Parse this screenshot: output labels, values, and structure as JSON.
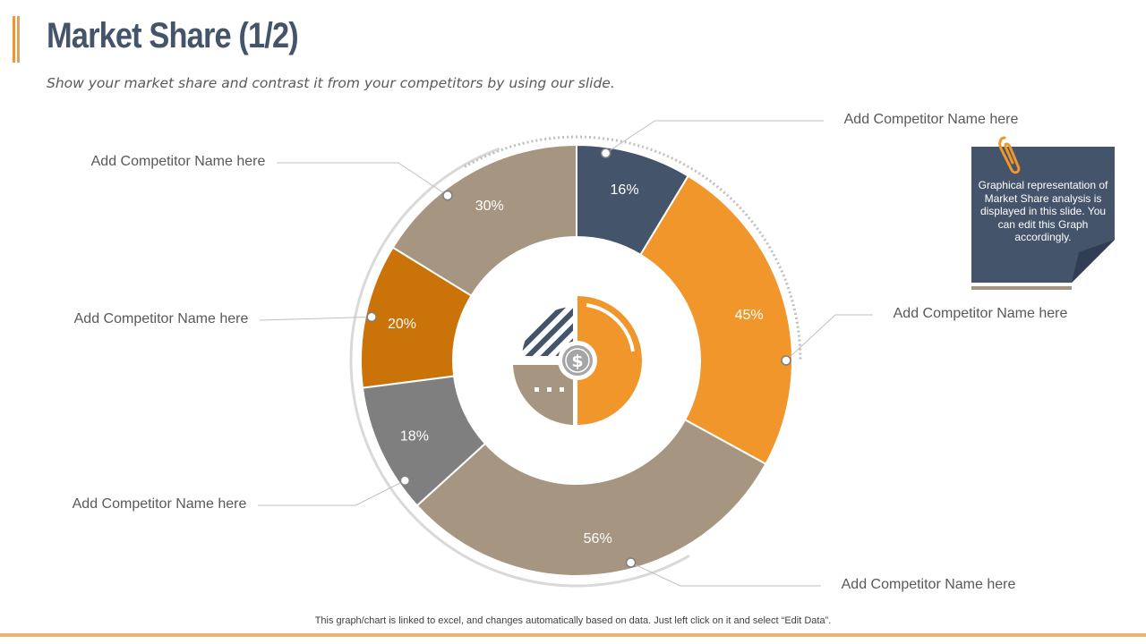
{
  "title": "Market Share (1/2)",
  "subtitle": "Show your market share and contrast it from your competitors by using our slide.",
  "colors": {
    "accent": "#f0962a",
    "title": "#44546a",
    "tan": "#a69580",
    "dark_orange": "#c97308",
    "gray": "#7f7f7f",
    "slate": "#44546a"
  },
  "chart_data": {
    "type": "donut",
    "title": "",
    "slices": [
      {
        "label": "Add Competitor Name here",
        "value": 16,
        "display": "16%",
        "color": "#44546a"
      },
      {
        "label": "Add Competitor Name here",
        "value": 45,
        "display": "45%",
        "color": "#f0962a"
      },
      {
        "label": "Add Competitor Name here",
        "value": 56,
        "display": "56%",
        "color": "#a69580"
      },
      {
        "label": "Add Competitor Name here",
        "value": 18,
        "display": "18%",
        "color": "#7f7f7f"
      },
      {
        "label": "Add Competitor Name here",
        "value": 20,
        "display": "20%",
        "color": "#c97308"
      },
      {
        "label": "Add Competitor Name here",
        "value": 30,
        "display": "30%",
        "color": "#a69580"
      }
    ],
    "center_icon": "dollar-pie-icon"
  },
  "note": {
    "text": "Graphical representation of Market Share analysis is displayed in this slide. You can edit this Graph accordingly.",
    "icon": "paperclip-icon"
  },
  "footer": "This graph/chart is linked to excel, and changes automatically based on data. Just left click on it and select “Edit Data”."
}
